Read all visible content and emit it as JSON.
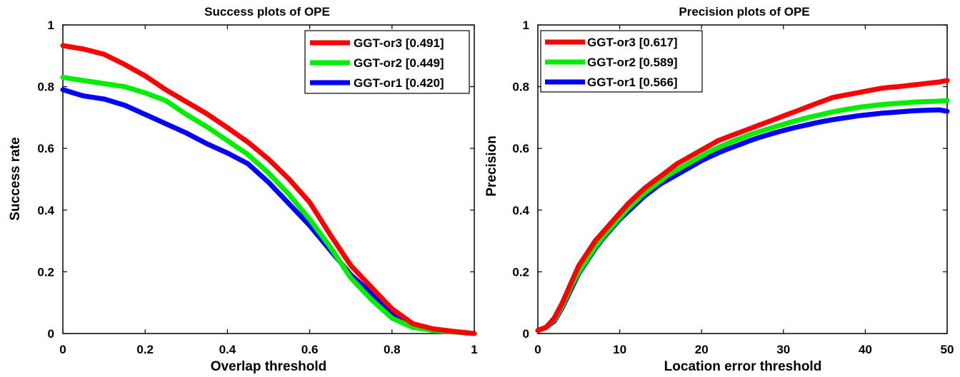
{
  "chart_data": [
    {
      "type": "line",
      "title": "Success plots of OPE",
      "xlabel": "Overlap threshold",
      "ylabel": "Success rate",
      "xlim": [
        0,
        1
      ],
      "ylim": [
        0,
        1
      ],
      "xticks": [
        0,
        0.2,
        0.4,
        0.6,
        0.8,
        1
      ],
      "xtick_labels": [
        "0",
        "0.2",
        "0.4",
        "0.6",
        "0.8",
        "1"
      ],
      "yticks": [
        0,
        0.2,
        0.4,
        0.6,
        0.8,
        1
      ],
      "ytick_labels": [
        "0",
        "0.2",
        "0.4",
        "0.6",
        "0.8",
        "1"
      ],
      "legend_position": "top-right",
      "grid": false,
      "x": [
        0,
        0.05,
        0.1,
        0.15,
        0.2,
        0.25,
        0.3,
        0.35,
        0.4,
        0.45,
        0.5,
        0.55,
        0.6,
        0.65,
        0.7,
        0.75,
        0.8,
        0.85,
        0.9,
        0.95,
        1.0
      ],
      "series": [
        {
          "name": "GGT-or3 [0.491]",
          "color": "#ff0000",
          "values": [
            0.933,
            0.922,
            0.905,
            0.872,
            0.835,
            0.79,
            0.751,
            0.712,
            0.667,
            0.62,
            0.565,
            0.5,
            0.425,
            0.32,
            0.22,
            0.15,
            0.08,
            0.032,
            0.015,
            0.007,
            0.0
          ]
        },
        {
          "name": "GGT-or2 [0.449]",
          "color": "#00ee00",
          "values": [
            0.83,
            0.82,
            0.81,
            0.8,
            0.78,
            0.755,
            0.71,
            0.67,
            0.625,
            0.58,
            0.52,
            0.45,
            0.37,
            0.28,
            0.18,
            0.11,
            0.05,
            0.02,
            0.01,
            0.005,
            0.0
          ]
        },
        {
          "name": "GGT-or1 [0.420]",
          "color": "#0000ff",
          "values": [
            0.79,
            0.77,
            0.76,
            0.74,
            0.71,
            0.68,
            0.65,
            0.615,
            0.585,
            0.55,
            0.49,
            0.42,
            0.35,
            0.27,
            0.19,
            0.13,
            0.065,
            0.025,
            0.01,
            0.005,
            0.0
          ]
        }
      ]
    },
    {
      "type": "line",
      "title": "Precision plots of OPE",
      "xlabel": "Location error threshold",
      "ylabel": "Precision",
      "xlim": [
        0,
        50
      ],
      "ylim": [
        0,
        1
      ],
      "xticks": [
        0,
        10,
        20,
        30,
        40,
        50
      ],
      "xtick_labels": [
        "0",
        "10",
        "20",
        "30",
        "40",
        "50"
      ],
      "yticks": [
        0,
        0.2,
        0.4,
        0.6,
        0.8,
        1
      ],
      "ytick_labels": [
        "0",
        "0.2",
        "0.4",
        "0.6",
        "0.8",
        "1"
      ],
      "legend_position": "top-left",
      "grid": false,
      "x": [
        0,
        1,
        2,
        3,
        4,
        5,
        6,
        7,
        8,
        9,
        10,
        11,
        12,
        13,
        14,
        15,
        16,
        17,
        18,
        19,
        20,
        21,
        22,
        23,
        24,
        25,
        26,
        27,
        28,
        29,
        30,
        31,
        32,
        33,
        34,
        35,
        36,
        37,
        38,
        39,
        40,
        41,
        42,
        43,
        44,
        45,
        46,
        47,
        48,
        49,
        50
      ],
      "series": [
        {
          "name": "GGT-or3 [0.617]",
          "color": "#ff0000",
          "values": [
            0.01,
            0.02,
            0.05,
            0.1,
            0.16,
            0.22,
            0.26,
            0.3,
            0.33,
            0.36,
            0.39,
            0.42,
            0.445,
            0.47,
            0.49,
            0.51,
            0.53,
            0.55,
            0.565,
            0.58,
            0.595,
            0.61,
            0.625,
            0.635,
            0.645,
            0.655,
            0.665,
            0.675,
            0.685,
            0.695,
            0.705,
            0.715,
            0.725,
            0.735,
            0.745,
            0.755,
            0.765,
            0.77,
            0.775,
            0.78,
            0.785,
            0.79,
            0.795,
            0.798,
            0.8,
            0.803,
            0.806,
            0.809,
            0.812,
            0.815,
            0.82
          ]
        },
        {
          "name": "GGT-or2 [0.589]",
          "color": "#00ee00",
          "values": [
            0.01,
            0.02,
            0.045,
            0.09,
            0.15,
            0.2,
            0.24,
            0.28,
            0.315,
            0.345,
            0.375,
            0.405,
            0.43,
            0.455,
            0.475,
            0.495,
            0.515,
            0.53,
            0.545,
            0.56,
            0.575,
            0.59,
            0.602,
            0.614,
            0.625,
            0.635,
            0.645,
            0.654,
            0.662,
            0.67,
            0.678,
            0.686,
            0.693,
            0.7,
            0.706,
            0.712,
            0.718,
            0.723,
            0.728,
            0.732,
            0.736,
            0.739,
            0.742,
            0.744,
            0.746,
            0.748,
            0.75,
            0.751,
            0.752,
            0.753,
            0.755
          ]
        },
        {
          "name": "GGT-or1 [0.566]",
          "color": "#0000ff",
          "values": [
            0.01,
            0.02,
            0.04,
            0.085,
            0.14,
            0.195,
            0.235,
            0.275,
            0.31,
            0.34,
            0.37,
            0.395,
            0.42,
            0.445,
            0.465,
            0.485,
            0.5,
            0.515,
            0.53,
            0.545,
            0.56,
            0.573,
            0.585,
            0.596,
            0.606,
            0.616,
            0.626,
            0.635,
            0.643,
            0.651,
            0.658,
            0.665,
            0.671,
            0.677,
            0.683,
            0.688,
            0.693,
            0.697,
            0.701,
            0.705,
            0.708,
            0.711,
            0.714,
            0.716,
            0.718,
            0.72,
            0.722,
            0.723,
            0.724,
            0.725,
            0.72
          ]
        }
      ]
    }
  ]
}
